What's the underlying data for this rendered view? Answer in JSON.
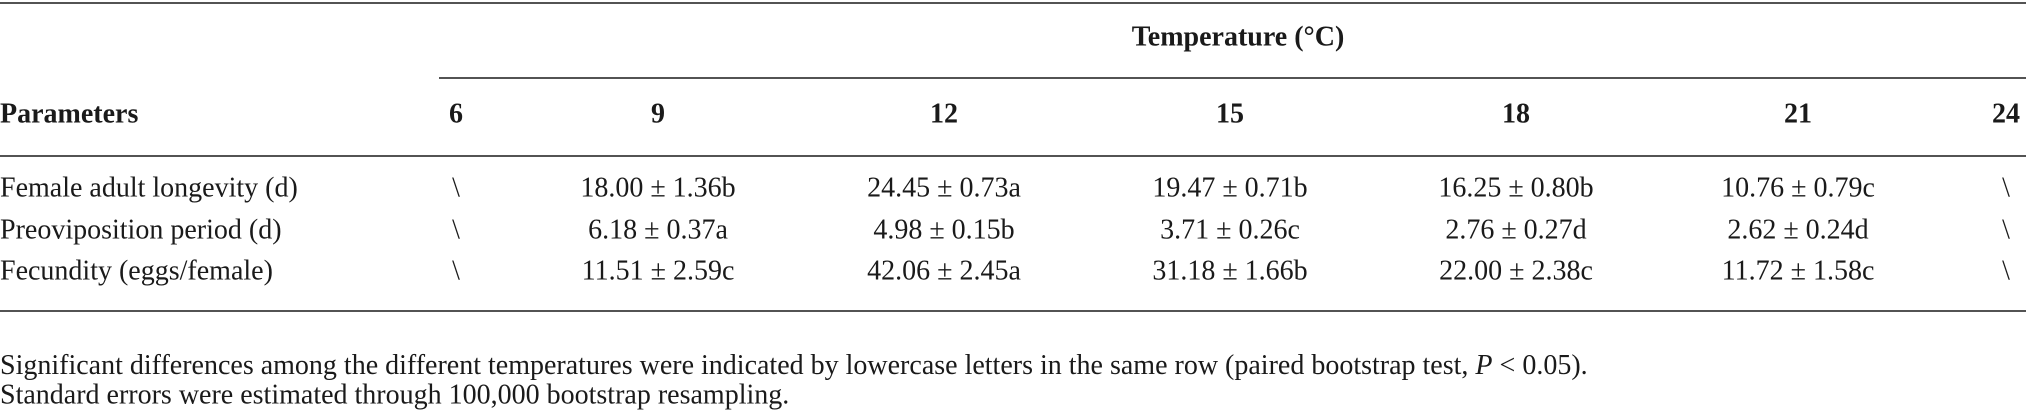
{
  "table": {
    "group_header": "Temperature (°C)",
    "columns": [
      "Parameters",
      "6",
      "9",
      "12",
      "15",
      "18",
      "21",
      "24"
    ],
    "rows": [
      [
        "Female adult longevity (d)",
        "\\",
        "18.00 ± 1.36b",
        "24.45 ± 0.73a",
        "19.47 ± 0.71b",
        "16.25 ± 0.80b",
        "10.76 ± 0.79c",
        "\\"
      ],
      [
        "Preoviposition period (d)",
        "\\",
        "6.18 ± 0.37a",
        "4.98 ± 0.15b",
        "3.71 ± 0.26c",
        "2.76 ± 0.27d",
        "2.62 ± 0.24d",
        "\\"
      ],
      [
        "Fecundity (eggs/female)",
        "\\",
        "11.51 ± 2.59c",
        "42.06 ± 2.45a",
        "31.18 ± 1.66b",
        "22.00 ± 2.38c",
        "11.72 ± 1.58c",
        "\\"
      ]
    ]
  },
  "footnote": {
    "line1": [
      "Significant differences among the different temperatures were indicated by lowercase letters in the same row (paired bootstrap test, ",
      "P",
      " < 0.05)."
    ],
    "line2": "Standard errors were estimated through 100,000 bootstrap resampling."
  }
}
